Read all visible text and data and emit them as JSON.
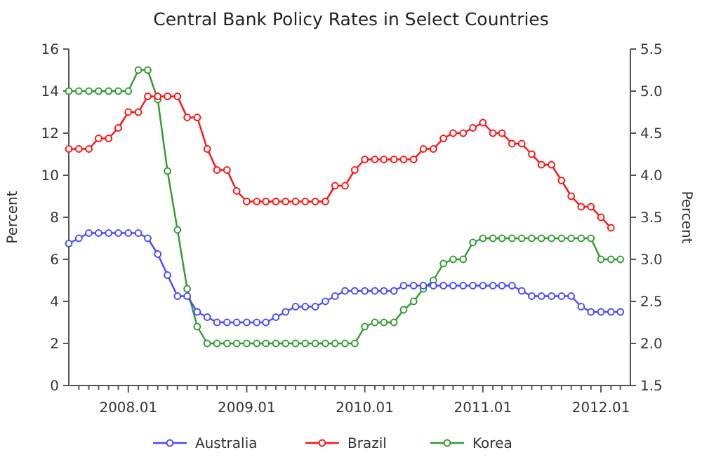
{
  "chart_data": {
    "type": "line",
    "title": "Central Bank Policy Rates in Select Countries",
    "ylabel": "Percent",
    "y2label": "Percent",
    "x": [
      "2007-07",
      "2007-08",
      "2007-09",
      "2007-10",
      "2007-11",
      "2007-12",
      "2008-01",
      "2008-02",
      "2008-03",
      "2008-04",
      "2008-05",
      "2008-06",
      "2008-07",
      "2008-08",
      "2008-09",
      "2008-10",
      "2008-11",
      "2008-12",
      "2009-01",
      "2009-02",
      "2009-03",
      "2009-04",
      "2009-05",
      "2009-06",
      "2009-07",
      "2009-08",
      "2009-09",
      "2009-10",
      "2009-11",
      "2009-12",
      "2010-01",
      "2010-02",
      "2010-03",
      "2010-04",
      "2010-05",
      "2010-06",
      "2010-07",
      "2010-08",
      "2010-09",
      "2010-10",
      "2010-11",
      "2010-12",
      "2011-01",
      "2011-02",
      "2011-03",
      "2011-04",
      "2011-05",
      "2011-06",
      "2011-07",
      "2011-08",
      "2011-09",
      "2011-10",
      "2011-11",
      "2011-12",
      "2012-01",
      "2012-02",
      "2012-03"
    ],
    "series": [
      {
        "name": "Australia",
        "color": "#4848ff",
        "values": [
          6.75,
          7.0,
          7.25,
          7.25,
          7.25,
          7.25,
          7.25,
          7.25,
          7.0,
          6.25,
          5.25,
          4.25,
          4.25,
          3.5,
          3.25,
          3.0,
          3.0,
          3.0,
          3.0,
          3.0,
          3.0,
          3.25,
          3.5,
          3.75,
          3.75,
          3.75,
          4.0,
          4.25,
          4.5,
          4.5,
          4.5,
          4.5,
          4.5,
          4.5,
          4.75,
          4.75,
          4.75,
          4.75,
          4.75,
          4.75,
          4.75,
          4.75,
          4.75,
          4.75,
          4.75,
          4.75,
          4.5,
          4.25,
          4.25,
          4.25,
          4.25,
          4.25,
          3.75,
          3.5,
          3.5,
          3.5,
          3.5
        ]
      },
      {
        "name": "Brazil",
        "color": "#ff1010",
        "values": [
          11.25,
          11.25,
          11.25,
          11.75,
          11.75,
          12.25,
          13.0,
          13.0,
          13.75,
          13.75,
          13.75,
          13.75,
          12.75,
          12.75,
          11.25,
          10.25,
          10.25,
          9.25,
          8.75,
          8.75,
          8.75,
          8.75,
          8.75,
          8.75,
          8.75,
          8.75,
          8.75,
          9.5,
          9.5,
          10.25,
          10.75,
          10.75,
          10.75,
          10.75,
          10.75,
          10.75,
          11.25,
          11.25,
          11.75,
          12.0,
          12.0,
          12.25,
          12.5,
          12.0,
          12.0,
          11.5,
          11.5,
          11.0,
          10.5,
          10.5,
          9.75,
          9.0,
          8.5,
          8.5,
          8.0,
          7.5,
          null
        ]
      },
      {
        "name": "Korea",
        "color": "#2f9a2f",
        "axis": "y2",
        "values": [
          5.0,
          5.0,
          5.0,
          5.0,
          5.0,
          5.0,
          5.0,
          5.25,
          5.25,
          4.9,
          4.05,
          3.35,
          2.65,
          2.2,
          2.0,
          2.0,
          2.0,
          2.0,
          2.0,
          2.0,
          2.0,
          2.0,
          2.0,
          2.0,
          2.0,
          2.0,
          2.0,
          2.0,
          2.0,
          2.0,
          2.2,
          2.25,
          2.25,
          2.25,
          2.4,
          2.5,
          2.65,
          2.75,
          2.95,
          3.0,
          3.0,
          3.2,
          3.25,
          3.25,
          3.25,
          3.25,
          3.25,
          3.25,
          3.25,
          3.25,
          3.25,
          3.25,
          3.25,
          3.25,
          3.0,
          3.0,
          3.0
        ]
      }
    ],
    "xlim": [
      "2007-07",
      "2012-04"
    ],
    "xticks": [
      {
        "value": "2007-08",
        "label": null
      },
      {
        "value": "2007-09",
        "label": null
      },
      {
        "value": "2007-10",
        "label": null
      },
      {
        "value": "2007-11",
        "label": null
      },
      {
        "value": "2007-12",
        "label": null
      },
      {
        "value": "2008-01",
        "label": "2008.01"
      },
      {
        "value": "2008-02",
        "label": null
      },
      {
        "value": "2008-03",
        "label": null
      },
      {
        "value": "2008-04",
        "label": null
      },
      {
        "value": "2008-05",
        "label": null
      },
      {
        "value": "2008-06",
        "label": null
      },
      {
        "value": "2008-07",
        "label": null
      },
      {
        "value": "2008-08",
        "label": null
      },
      {
        "value": "2008-09",
        "label": null
      },
      {
        "value": "2008-10",
        "label": null
      },
      {
        "value": "2008-11",
        "label": null
      },
      {
        "value": "2008-12",
        "label": null
      },
      {
        "value": "2009-01",
        "label": "2009.01"
      },
      {
        "value": "2009-02",
        "label": null
      },
      {
        "value": "2009-03",
        "label": null
      },
      {
        "value": "2009-04",
        "label": null
      },
      {
        "value": "2009-05",
        "label": null
      },
      {
        "value": "2009-06",
        "label": null
      },
      {
        "value": "2009-07",
        "label": null
      },
      {
        "value": "2009-08",
        "label": null
      },
      {
        "value": "2009-09",
        "label": null
      },
      {
        "value": "2009-10",
        "label": null
      },
      {
        "value": "2009-11",
        "label": null
      },
      {
        "value": "2009-12",
        "label": null
      },
      {
        "value": "2010-01",
        "label": "2010.01"
      },
      {
        "value": "2010-02",
        "label": null
      },
      {
        "value": "2010-03",
        "label": null
      },
      {
        "value": "2010-04",
        "label": null
      },
      {
        "value": "2010-05",
        "label": null
      },
      {
        "value": "2010-06",
        "label": null
      },
      {
        "value": "2010-07",
        "label": null
      },
      {
        "value": "2010-08",
        "label": null
      },
      {
        "value": "2010-09",
        "label": null
      },
      {
        "value": "2010-10",
        "label": null
      },
      {
        "value": "2010-11",
        "label": null
      },
      {
        "value": "2010-12",
        "label": null
      },
      {
        "value": "2011-01",
        "label": "2011.01"
      },
      {
        "value": "2011-02",
        "label": null
      },
      {
        "value": "2011-03",
        "label": null
      },
      {
        "value": "2011-04",
        "label": null
      },
      {
        "value": "2011-05",
        "label": null
      },
      {
        "value": "2011-06",
        "label": null
      },
      {
        "value": "2011-07",
        "label": null
      },
      {
        "value": "2011-08",
        "label": null
      },
      {
        "value": "2011-09",
        "label": null
      },
      {
        "value": "2011-10",
        "label": null
      },
      {
        "value": "2011-11",
        "label": null
      },
      {
        "value": "2011-12",
        "label": null
      },
      {
        "value": "2012-01",
        "label": "2012.01"
      },
      {
        "value": "2012-02",
        "label": null
      },
      {
        "value": "2012-03",
        "label": null
      }
    ],
    "ylim": [
      0,
      16
    ],
    "yticks": [
      0,
      2,
      4,
      6,
      8,
      10,
      12,
      14,
      16
    ],
    "y2lim": [
      1.5,
      5.5
    ],
    "y2ticks": [
      {
        "value": 1.5,
        "label": "1.5"
      },
      {
        "value": 2,
        "label": "2.0"
      },
      {
        "value": 2.5,
        "label": "2.5"
      },
      {
        "value": 3,
        "label": "3.0"
      },
      {
        "value": 3.5,
        "label": "3.5"
      },
      {
        "value": 4,
        "label": "4.0"
      },
      {
        "value": 4.5,
        "label": "4.5"
      },
      {
        "value": 5,
        "label": "5.0"
      },
      {
        "value": 5.5,
        "label": "5.5"
      }
    ],
    "grid": false,
    "legend": "bottom",
    "marker": "circle",
    "line_style": "solid"
  }
}
